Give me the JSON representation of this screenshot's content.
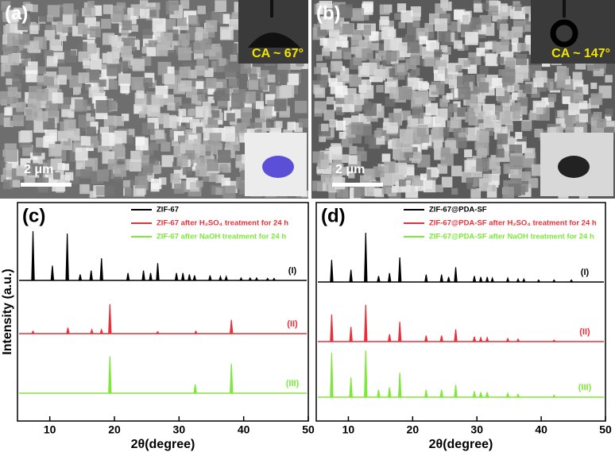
{
  "panels": [
    {
      "label": "(a)",
      "contact_angle": "CA ~ 67°",
      "scale_bar": "2 μm"
    },
    {
      "label": "(b)",
      "contact_angle": "CA ~ 147°",
      "scale_bar": "2 μm"
    }
  ],
  "chart_data": [
    {
      "type": "xrd",
      "label": "(c)",
      "x_label": "2θ(degree)",
      "y_label": "Intensity (a.u.)",
      "xlim": [
        5,
        50
      ],
      "xticks": [
        10,
        20,
        30,
        40,
        50
      ],
      "series": [
        {
          "name": "ZIF-67",
          "tag": "(I)",
          "color": "#000000",
          "x": [
            7.4,
            10.4,
            12.7,
            14.7,
            16.4,
            18.0,
            22.1,
            24.5,
            25.6,
            26.7,
            29.6,
            30.6,
            31.6,
            32.4,
            34.8,
            36.4,
            37.3,
            39.6,
            41.0,
            42.0,
            43.7,
            44.7
          ],
          "values": [
            100,
            30,
            95,
            12,
            20,
            45,
            15,
            20,
            15,
            35,
            15,
            15,
            12,
            10,
            10,
            8,
            8,
            5,
            5,
            5,
            4,
            4
          ]
        },
        {
          "name": "ZIF-67 after H₂SO₄ treatment for 24 h",
          "tag": "(II)",
          "color": "#e8303a",
          "x": [
            7.4,
            12.8,
            16.5,
            18.0,
            19.3,
            26.7,
            32.6,
            38.1
          ],
          "values": [
            5,
            12,
            8,
            8,
            60,
            4,
            5,
            28
          ]
        },
        {
          "name": "ZIF-67 after NaOH treatment for 24 h",
          "tag": "(III)",
          "color": "#7ee83a",
          "x": [
            19.3,
            32.5,
            38.1
          ],
          "values": [
            75,
            18,
            60
          ]
        }
      ]
    },
    {
      "type": "xrd",
      "label": "(d)",
      "x_label": "2θ(degree)",
      "xlim": [
        5,
        50
      ],
      "xticks": [
        10,
        20,
        30,
        40,
        50
      ],
      "series": [
        {
          "name": "ZIF-67@PDA-SF",
          "tag": "(I)",
          "color": "#000000",
          "x": [
            7.4,
            10.4,
            12.7,
            14.7,
            16.4,
            18.0,
            22.1,
            24.5,
            25.6,
            26.7,
            29.6,
            30.6,
            31.6,
            32.4,
            34.8,
            36.4,
            37.3,
            39.6,
            42.0,
            44.7
          ],
          "values": [
            45,
            25,
            100,
            12,
            18,
            50,
            15,
            15,
            10,
            30,
            12,
            10,
            10,
            8,
            8,
            6,
            6,
            4,
            4,
            4
          ]
        },
        {
          "name": "ZIF-67@PDA-SF after H₂SO₄ treatment for 24 h",
          "tag": "(II)",
          "color": "#e8303a",
          "x": [
            7.4,
            10.4,
            12.7,
            16.4,
            18.0,
            22.1,
            24.5,
            26.7,
            29.6,
            30.6,
            31.6,
            34.8,
            36.4,
            42.0
          ],
          "values": [
            55,
            30,
            75,
            15,
            40,
            12,
            12,
            25,
            10,
            8,
            8,
            6,
            5,
            3
          ]
        },
        {
          "name": "ZIF-67@PDA-SF after NaOH treatment for 24 h",
          "tag": "(III)",
          "color": "#7ee83a",
          "x": [
            7.4,
            10.4,
            12.7,
            14.7,
            16.4,
            18.0,
            22.1,
            24.5,
            26.7,
            29.6,
            30.6,
            31.6,
            34.8,
            36.4,
            42.0
          ],
          "values": [
            90,
            40,
            95,
            15,
            20,
            50,
            15,
            15,
            25,
            12,
            10,
            10,
            8,
            6,
            4
          ]
        }
      ]
    }
  ]
}
